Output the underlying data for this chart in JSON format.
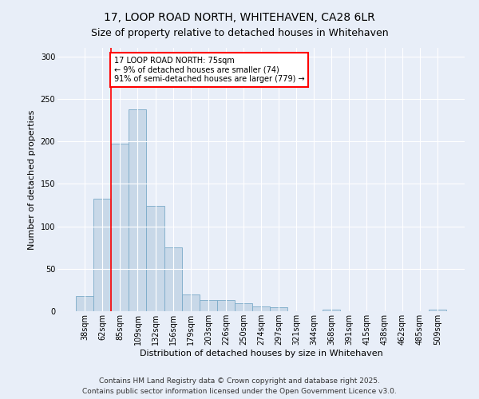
{
  "title1": "17, LOOP ROAD NORTH, WHITEHAVEN, CA28 6LR",
  "title2": "Size of property relative to detached houses in Whitehaven",
  "xlabel": "Distribution of detached houses by size in Whitehaven",
  "ylabel": "Number of detached properties",
  "categories": [
    "38sqm",
    "62sqm",
    "85sqm",
    "109sqm",
    "132sqm",
    "156sqm",
    "179sqm",
    "203sqm",
    "226sqm",
    "250sqm",
    "274sqm",
    "297sqm",
    "321sqm",
    "344sqm",
    "368sqm",
    "391sqm",
    "415sqm",
    "438sqm",
    "462sqm",
    "485sqm",
    "509sqm"
  ],
  "values": [
    18,
    132,
    197,
    238,
    124,
    75,
    20,
    13,
    13,
    9,
    6,
    5,
    0,
    0,
    2,
    0,
    0,
    0,
    0,
    0,
    2
  ],
  "bar_color": "#c8d8e8",
  "bar_edge_color": "#7aaac8",
  "vline_color": "red",
  "vline_pos": 1.5,
  "annotation_text_line1": "17 LOOP ROAD NORTH: 75sqm",
  "annotation_text_line2": "← 9% of detached houses are smaller (74)",
  "annotation_text_line3": "91% of semi-detached houses are larger (779) →",
  "annotation_box_color": "white",
  "annotation_box_edge_color": "red",
  "ylim": [
    0,
    310
  ],
  "yticks": [
    0,
    50,
    100,
    150,
    200,
    250,
    300
  ],
  "footer": "Contains HM Land Registry data © Crown copyright and database right 2025.\nContains public sector information licensed under the Open Government Licence v3.0.",
  "bg_color": "#e8eef8",
  "plot_bg_color": "#e8eef8",
  "title1_fontsize": 10,
  "title2_fontsize": 9,
  "annotation_fontsize": 7,
  "xlabel_fontsize": 8,
  "ylabel_fontsize": 8,
  "footer_fontsize": 6.5,
  "tick_fontsize": 7
}
